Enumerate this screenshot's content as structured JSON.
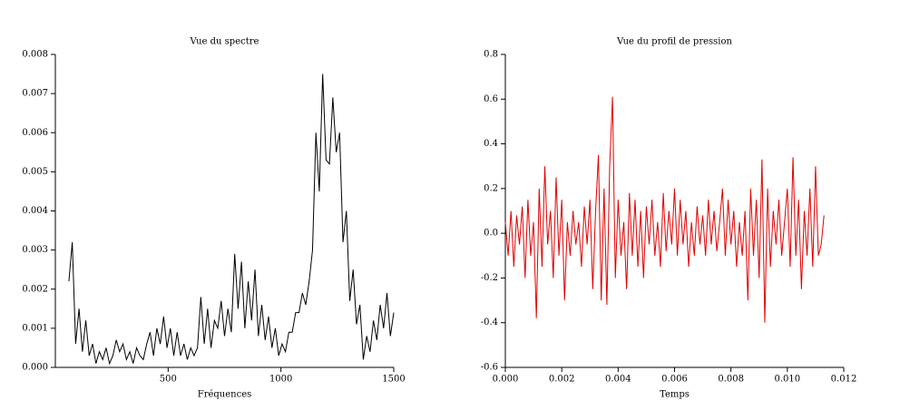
{
  "chart_data": [
    {
      "type": "line",
      "title": "Vue du spectre",
      "x_label": "Fréquences",
      "xlim": [
        0,
        1500
      ],
      "xticks": [
        500,
        1000,
        1500
      ],
      "ylim": [
        0,
        0.008
      ],
      "yticks": [
        {
          "value": 0,
          "label": "0.000"
        },
        {
          "value": 0.001,
          "label": "0.001"
        },
        {
          "value": 0.002,
          "label": "0.002"
        },
        {
          "value": 0.003,
          "label": "0.003"
        },
        {
          "value": 0.004,
          "label": "0.004"
        },
        {
          "value": 0.005,
          "label": "0.005"
        },
        {
          "value": 0.006,
          "label": "0.006"
        },
        {
          "value": 0.007,
          "label": "0.007"
        },
        {
          "value": 0.008,
          "label": "0.008"
        }
      ],
      "series": [
        {
          "color": "#000000",
          "x": [
            60,
            75,
            90,
            105,
            120,
            135,
            150,
            165,
            180,
            195,
            210,
            225,
            240,
            255,
            270,
            285,
            300,
            315,
            330,
            345,
            360,
            375,
            390,
            405,
            420,
            435,
            450,
            465,
            480,
            495,
            510,
            525,
            540,
            555,
            570,
            585,
            600,
            615,
            630,
            645,
            660,
            675,
            690,
            705,
            720,
            735,
            750,
            765,
            780,
            795,
            810,
            825,
            840,
            855,
            870,
            885,
            900,
            915,
            930,
            945,
            960,
            975,
            990,
            1005,
            1020,
            1035,
            1050,
            1065,
            1080,
            1095,
            1110,
            1125,
            1140,
            1155,
            1170,
            1185,
            1200,
            1215,
            1230,
            1245,
            1260,
            1275,
            1290,
            1305,
            1320,
            1335,
            1350,
            1365,
            1380,
            1395,
            1410,
            1425,
            1440,
            1455,
            1470,
            1485,
            1500
          ],
          "values": [
            0.0022,
            0.0032,
            0.0006,
            0.0015,
            0.0004,
            0.0012,
            0.0003,
            0.0006,
            0.0001,
            0.0004,
            0.0002,
            0.0005,
            0.0001,
            0.0003,
            0.0007,
            0.0004,
            0.0006,
            0.0002,
            0.0004,
            0.0001,
            0.0005,
            0.0003,
            0.0002,
            0.0006,
            0.0009,
            0.0003,
            0.001,
            0.0006,
            0.0013,
            0.0005,
            0.001,
            0.0003,
            0.0009,
            0.0003,
            0.0006,
            0.0002,
            0.0005,
            0.0003,
            0.0005,
            0.0018,
            0.0006,
            0.0015,
            0.0005,
            0.0012,
            0.001,
            0.0017,
            0.0008,
            0.0015,
            0.0009,
            0.0029,
            0.0015,
            0.0027,
            0.001,
            0.0022,
            0.0012,
            0.0025,
            0.0008,
            0.0016,
            0.0007,
            0.0013,
            0.0005,
            0.001,
            0.0003,
            0.0006,
            0.0004,
            0.0009,
            0.0009,
            0.0014,
            0.0014,
            0.0019,
            0.0016,
            0.0022,
            0.003,
            0.006,
            0.0045,
            0.0075,
            0.0053,
            0.0052,
            0.0069,
            0.0055,
            0.006,
            0.0032,
            0.004,
            0.0017,
            0.0025,
            0.0011,
            0.0016,
            0.0002,
            0.0008,
            0.0004,
            0.0012,
            0.0007,
            0.0016,
            0.001,
            0.0019,
            0.0008,
            0.0014
          ]
        }
      ]
    },
    {
      "type": "line",
      "title": "Vue du profil de pression",
      "x_label": "Temps",
      "xlim": [
        0,
        0.012
      ],
      "xticks": [
        {
          "value": 0,
          "label": "0.000"
        },
        {
          "value": 0.002,
          "label": "0.002"
        },
        {
          "value": 0.004,
          "label": "0.004"
        },
        {
          "value": 0.006,
          "label": "0.006"
        },
        {
          "value": 0.008,
          "label": "0.008"
        },
        {
          "value": 0.01,
          "label": "0.010"
        },
        {
          "value": 0.012,
          "label": "0.012"
        }
      ],
      "ylim": [
        -0.6,
        0.8
      ],
      "yticks": [
        -0.6,
        -0.4,
        -0.2,
        {
          "value": 0,
          "label": "0.0"
        },
        0.2,
        0.4,
        0.6,
        0.8
      ],
      "series": [
        {
          "color": "#e00000",
          "x": [
            0,
            0.0001,
            0.0002,
            0.0003,
            0.0004,
            0.0005,
            0.0006,
            0.0007,
            0.0008,
            0.0009,
            0.001,
            0.0011,
            0.0012,
            0.0013,
            0.0014,
            0.0015,
            0.0016,
            0.0017,
            0.0018,
            0.0019,
            0.002,
            0.0021,
            0.0022,
            0.0023,
            0.0024,
            0.0025,
            0.0026,
            0.0027,
            0.0028,
            0.0029,
            0.003,
            0.0031,
            0.0032,
            0.0033,
            0.0034,
            0.0035,
            0.0036,
            0.0037,
            0.0038,
            0.0039,
            0.004,
            0.0041,
            0.0042,
            0.0043,
            0.0044,
            0.0045,
            0.0046,
            0.0047,
            0.0048,
            0.0049,
            0.005,
            0.0051,
            0.0052,
            0.0053,
            0.0054,
            0.0055,
            0.0056,
            0.0057,
            0.0058,
            0.0059,
            0.006,
            0.0061,
            0.0062,
            0.0063,
            0.0064,
            0.0065,
            0.0066,
            0.0067,
            0.0068,
            0.0069,
            0.007,
            0.0071,
            0.0072,
            0.0073,
            0.0074,
            0.0075,
            0.0076,
            0.0077,
            0.0078,
            0.0079,
            0.008,
            0.0081,
            0.0082,
            0.0083,
            0.0084,
            0.0085,
            0.0086,
            0.0087,
            0.0088,
            0.0089,
            0.009,
            0.0091,
            0.0092,
            0.0093,
            0.0094,
            0.0095,
            0.0096,
            0.0097,
            0.0098,
            0.0099,
            0.01,
            0.0101,
            0.0102,
            0.0103,
            0.0104,
            0.0105,
            0.0106,
            0.0107,
            0.0108,
            0.0109,
            0.011,
            0.0111,
            0.0112,
            0.0113
          ],
          "values": [
            0.05,
            -0.1,
            0.1,
            -0.15,
            0.08,
            -0.05,
            0.12,
            -0.2,
            0.15,
            -0.1,
            0.05,
            -0.38,
            0.2,
            -0.15,
            0.3,
            -0.05,
            0.1,
            -0.2,
            0.25,
            -0.1,
            0.15,
            -0.3,
            0.05,
            -0.1,
            0.1,
            -0.05,
            0.05,
            -0.15,
            0.12,
            -0.05,
            0.15,
            -0.25,
            0.1,
            0.35,
            -0.3,
            0.2,
            -0.32,
            0.3,
            0.61,
            -0.2,
            0.15,
            -0.1,
            0.05,
            -0.25,
            0.18,
            -0.1,
            0.15,
            -0.15,
            0.1,
            -0.2,
            0.12,
            -0.05,
            0.15,
            -0.1,
            0.05,
            -0.15,
            0.18,
            -0.08,
            0.1,
            -0.05,
            0.2,
            -0.1,
            0.15,
            -0.05,
            0.1,
            -0.15,
            0.05,
            -0.1,
            0.12,
            -0.05,
            0.08,
            -0.1,
            0.15,
            -0.05,
            0.1,
            -0.08,
            0.05,
            0.2,
            -0.1,
            0.15,
            -0.05,
            0.1,
            -0.15,
            0.05,
            -0.1,
            0.1,
            -0.3,
            0.2,
            -0.1,
            0.15,
            -0.2,
            0.33,
            -0.4,
            0.2,
            -0.15,
            0.1,
            -0.05,
            0.15,
            -0.1,
            0.05,
            0.2,
            -0.15,
            0.34,
            -0.1,
            0.15,
            -0.25,
            0.1,
            -0.1,
            0.2,
            -0.15,
            0.3,
            -0.1,
            -0.05,
            0.08
          ]
        }
      ]
    }
  ]
}
